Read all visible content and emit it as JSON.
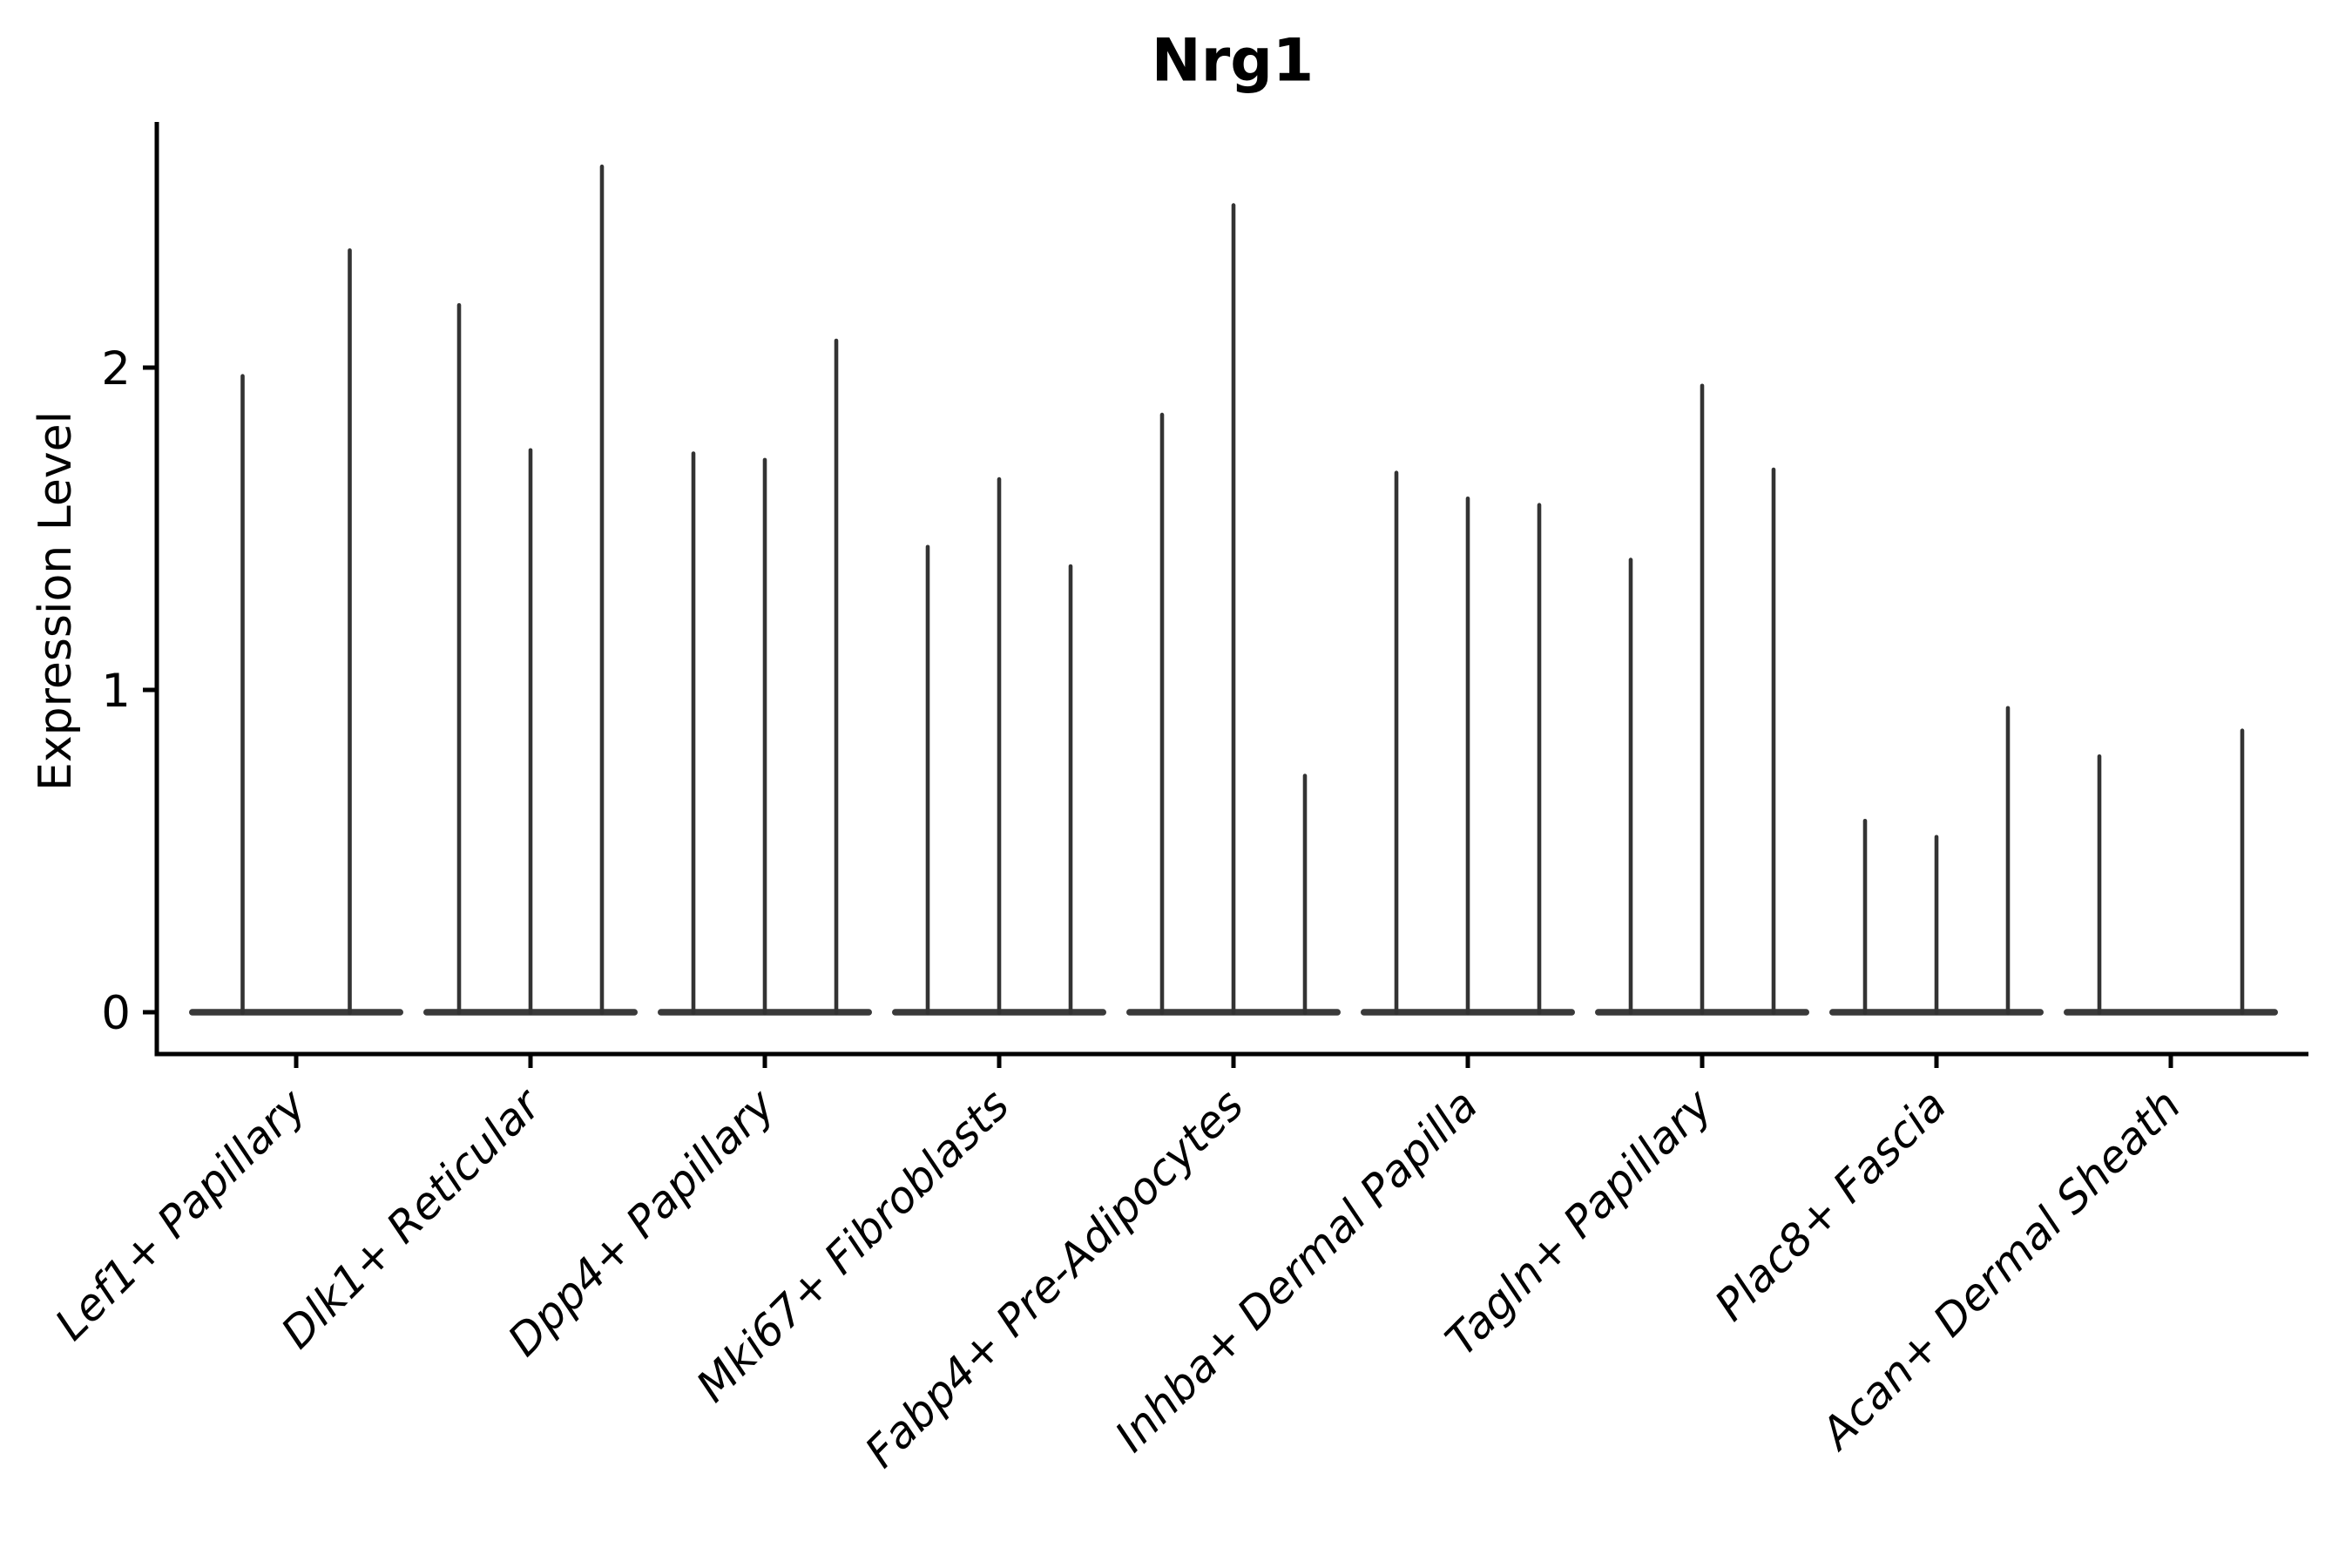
{
  "colors": {
    "background": "#ffffff",
    "axis": "#000000",
    "text": "#000000",
    "violin_spike": "#333333",
    "violin_base": "#3a3a3a"
  },
  "chart_data": {
    "type": "violin",
    "title": "Nrg1",
    "ylabel": "Expression Level",
    "xlabel": "",
    "yticks": [
      0,
      1,
      2
    ],
    "ylim": [
      0,
      2.76
    ],
    "grid": false,
    "legend": "none",
    "style_note": "Seurat-style stacked-at-zero violins rendered as flat bases at 0 with thin vertical density spikes; x tick labels italic, rotated 45 degrees",
    "categories": [
      "Lef1+ Papillary",
      "Dlk1+ Reticular",
      "Dpp4+ Papillary",
      "Mki67+ Fibroblasts",
      "Fabp4+ Pre-Adipocytes",
      "Inhba+ Dermal Papilla",
      "Tagln+ Papillary",
      "Plac8+ Fascia",
      "Acan+ Dermal Sheath"
    ],
    "violins_per_category": [
      2,
      3,
      3,
      3,
      3,
      3,
      3,
      3,
      3
    ],
    "series": [
      {
        "name": "Lef1+ Papillary",
        "spike_peaks": [
          1.98,
          2.37
        ]
      },
      {
        "name": "Dlk1+ Reticular",
        "spike_peaks": [
          2.2,
          1.75,
          2.63
        ]
      },
      {
        "name": "Dpp4+ Papillary",
        "spike_peaks": [
          1.74,
          1.72,
          2.09
        ]
      },
      {
        "name": "Mki67+ Fibroblasts",
        "spike_peaks": [
          1.45,
          1.66,
          1.39
        ]
      },
      {
        "name": "Fabp4+ Pre-Adipocytes",
        "spike_peaks": [
          1.86,
          2.51,
          0.74
        ]
      },
      {
        "name": "Inhba+ Dermal Papilla",
        "spike_peaks": [
          1.68,
          1.6,
          1.58
        ]
      },
      {
        "name": "Tagln+ Papillary",
        "spike_peaks": [
          1.41,
          1.95,
          1.69
        ]
      },
      {
        "name": "Plac8+ Fascia",
        "spike_peaks": [
          0.6,
          0.55,
          0.95
        ]
      },
      {
        "name": "Acan+ Dermal Sheath",
        "spike_peaks": [
          0.8,
          0.0,
          0.88
        ]
      }
    ]
  }
}
